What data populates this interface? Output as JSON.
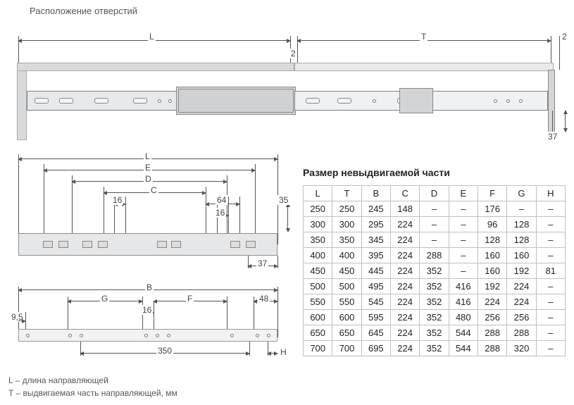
{
  "title": "Расположение отверстий",
  "top_diagram": {
    "dim_L_label": "L",
    "dim_T_label": "T",
    "dim_gap1": "2",
    "dim_gap2": "2",
    "dim_37": "37",
    "cabinet_color": "#d8dadb",
    "rail_color": "#e8e9ea"
  },
  "mid_diagram": {
    "labels": {
      "L": "L",
      "E": "E",
      "D": "D",
      "C": "C",
      "d16a": "16",
      "d16b": "16",
      "d64": "64",
      "d35": "35",
      "d37": "37"
    }
  },
  "bottom_diagram": {
    "labels": {
      "B": "B",
      "G": "G",
      "F": "F",
      "d48": "48",
      "d16": "16",
      "d9_5": "9,5",
      "d350": "350",
      "H": "H"
    }
  },
  "legend": {
    "L": "L – длина направляющей",
    "T": "T – выдвигаемая  часть направляющей, мм"
  },
  "table": {
    "title": "Размер невыдвигаемой части",
    "columns": [
      "L",
      "T",
      "B",
      "C",
      "D",
      "E",
      "F",
      "G",
      "H"
    ],
    "rows": [
      [
        "250",
        "250",
        "245",
        "148",
        "–",
        "–",
        "176",
        "–",
        "–"
      ],
      [
        "300",
        "300",
        "295",
        "224",
        "–",
        "–",
        "96",
        "128",
        "–"
      ],
      [
        "350",
        "350",
        "345",
        "224",
        "–",
        "–",
        "128",
        "128",
        "–"
      ],
      [
        "400",
        "400",
        "395",
        "224",
        "288",
        "–",
        "160",
        "160",
        "–"
      ],
      [
        "450",
        "450",
        "445",
        "224",
        "352",
        "–",
        "160",
        "192",
        "81"
      ],
      [
        "500",
        "500",
        "495",
        "224",
        "352",
        "416",
        "192",
        "224",
        "–"
      ],
      [
        "550",
        "550",
        "545",
        "224",
        "352",
        "416",
        "224",
        "224",
        "–"
      ],
      [
        "600",
        "600",
        "595",
        "224",
        "352",
        "480",
        "256",
        "256",
        "–"
      ],
      [
        "650",
        "650",
        "645",
        "224",
        "352",
        "544",
        "288",
        "288",
        "–"
      ],
      [
        "700",
        "700",
        "695",
        "224",
        "352",
        "544",
        "288",
        "320",
        "–"
      ]
    ]
  }
}
